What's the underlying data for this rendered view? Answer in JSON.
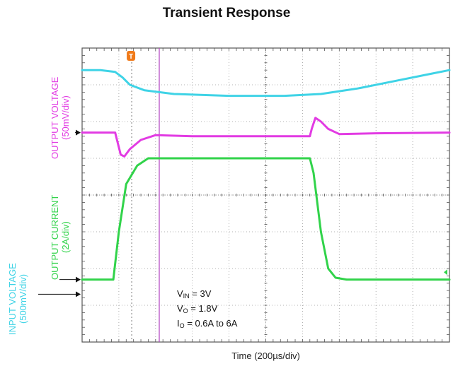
{
  "chart_data": {
    "type": "line",
    "title": "Transient Response",
    "xlabel": "Time (200µs/div)",
    "x_divisions": 10,
    "y_divisions": 8,
    "x_range_div": [
      0,
      10
    ],
    "y_range_div": [
      0,
      8
    ],
    "grid": true,
    "trigger_marker": "T",
    "channels": [
      {
        "name_line1": "OUTPUT VOLTAGE",
        "name_line2": "(50mV/div)",
        "color": "#e23be3",
        "ground_div": 5.7
      },
      {
        "name_line1": "OUTPUT CURRENT",
        "name_line2": "(2A/div)",
        "color": "#31d34a",
        "ground_div": 1.7
      },
      {
        "name_line1": "INPUT VOLTAGE",
        "name_line2": "(500mV/div)",
        "color": "#3fd3e6",
        "ground_div": 1.3
      }
    ],
    "series": [
      {
        "name": "INPUT VOLTAGE",
        "color": "#3fd3e6",
        "points": [
          [
            0,
            7.4
          ],
          [
            0.5,
            7.4
          ],
          [
            0.9,
            7.35
          ],
          [
            1.1,
            7.2
          ],
          [
            1.3,
            7.0
          ],
          [
            1.7,
            6.85
          ],
          [
            2.5,
            6.75
          ],
          [
            4,
            6.7
          ],
          [
            5.5,
            6.7
          ],
          [
            6.5,
            6.75
          ],
          [
            7.5,
            6.9
          ],
          [
            8.5,
            7.1
          ],
          [
            9.5,
            7.3
          ],
          [
            10,
            7.4
          ]
        ]
      },
      {
        "name": "OUTPUT VOLTAGE",
        "color": "#e23be3",
        "points": [
          [
            0,
            5.7
          ],
          [
            0.9,
            5.7
          ],
          [
            0.95,
            5.5
          ],
          [
            1.05,
            5.1
          ],
          [
            1.15,
            5.05
          ],
          [
            1.3,
            5.25
          ],
          [
            1.6,
            5.5
          ],
          [
            2.0,
            5.63
          ],
          [
            3,
            5.6
          ],
          [
            5,
            5.6
          ],
          [
            6.2,
            5.6
          ],
          [
            6.25,
            5.8
          ],
          [
            6.35,
            6.1
          ],
          [
            6.5,
            6.0
          ],
          [
            6.7,
            5.8
          ],
          [
            7,
            5.66
          ],
          [
            8,
            5.68
          ],
          [
            10,
            5.7
          ]
        ]
      },
      {
        "name": "OUTPUT CURRENT",
        "color": "#31d34a",
        "points": [
          [
            0,
            1.7
          ],
          [
            0.85,
            1.7
          ],
          [
            1.0,
            3.0
          ],
          [
            1.2,
            4.3
          ],
          [
            1.5,
            4.8
          ],
          [
            1.8,
            5.0
          ],
          [
            6.2,
            5.0
          ],
          [
            6.3,
            4.6
          ],
          [
            6.5,
            3.0
          ],
          [
            6.7,
            2.0
          ],
          [
            6.9,
            1.75
          ],
          [
            7.2,
            1.7
          ],
          [
            10,
            1.7
          ]
        ]
      }
    ],
    "cursors_div": [
      1.35,
      2.1
    ],
    "annotation": {
      "vin_label": "V",
      "vin_sub": "IN",
      "vin_value": " = 3V",
      "vo_label": "V",
      "vo_sub": "O",
      "vo_value": " = 1.8V",
      "io_label": "I",
      "io_sub": "O",
      "io_value": " = 0.6A to 6A"
    }
  }
}
